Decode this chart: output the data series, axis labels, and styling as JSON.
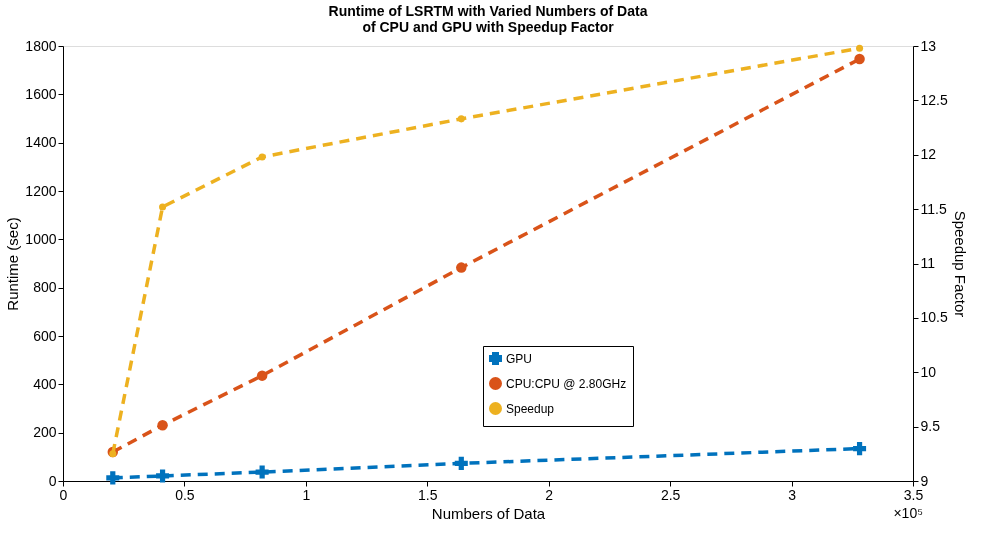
{
  "chart_data": {
    "type": "line",
    "title": "Runtime of LSRTM with Varied Numbers of Data\nof CPU and GPU with Speedup Factor",
    "xlabel": "Numbers of Data",
    "ylabel": "Runtime (sec)",
    "y2label": "Speedup Factor",
    "x": [
      0.205,
      0.41,
      0.82,
      1.64,
      3.28
    ],
    "series": [
      {
        "name": "GPU",
        "color": "#0072bd",
        "marker": "cross",
        "values": [
          13,
          21,
          37,
          73,
          134
        ]
      },
      {
        "name": "CPU:CPU @ 2.80GHz",
        "color": "#d95319",
        "marker": "circle",
        "values": [
          120,
          231,
          436,
          883,
          1746
        ]
      },
      {
        "name": "Speedup",
        "color": "#edb120",
        "marker": "circle",
        "axis": "y2",
        "values": [
          9.25,
          11.52,
          11.98,
          12.33,
          12.98
        ]
      }
    ],
    "xlim": [
      0,
      3.5
    ],
    "xticks": [
      0,
      0.5,
      1,
      1.5,
      2,
      2.5,
      3,
      3.5
    ],
    "ylim": [
      0,
      1800
    ],
    "yticks": [
      0,
      200,
      400,
      600,
      800,
      1000,
      1200,
      1400,
      1600,
      1800
    ],
    "y2lim": [
      9,
      13
    ],
    "y2ticks": [
      9,
      9.5,
      10,
      10.5,
      11,
      11.5,
      12,
      12.5,
      13
    ],
    "line_style": "dashed",
    "grid": false,
    "legend": "right",
    "annotations": [
      "×10⁵"
    ]
  }
}
